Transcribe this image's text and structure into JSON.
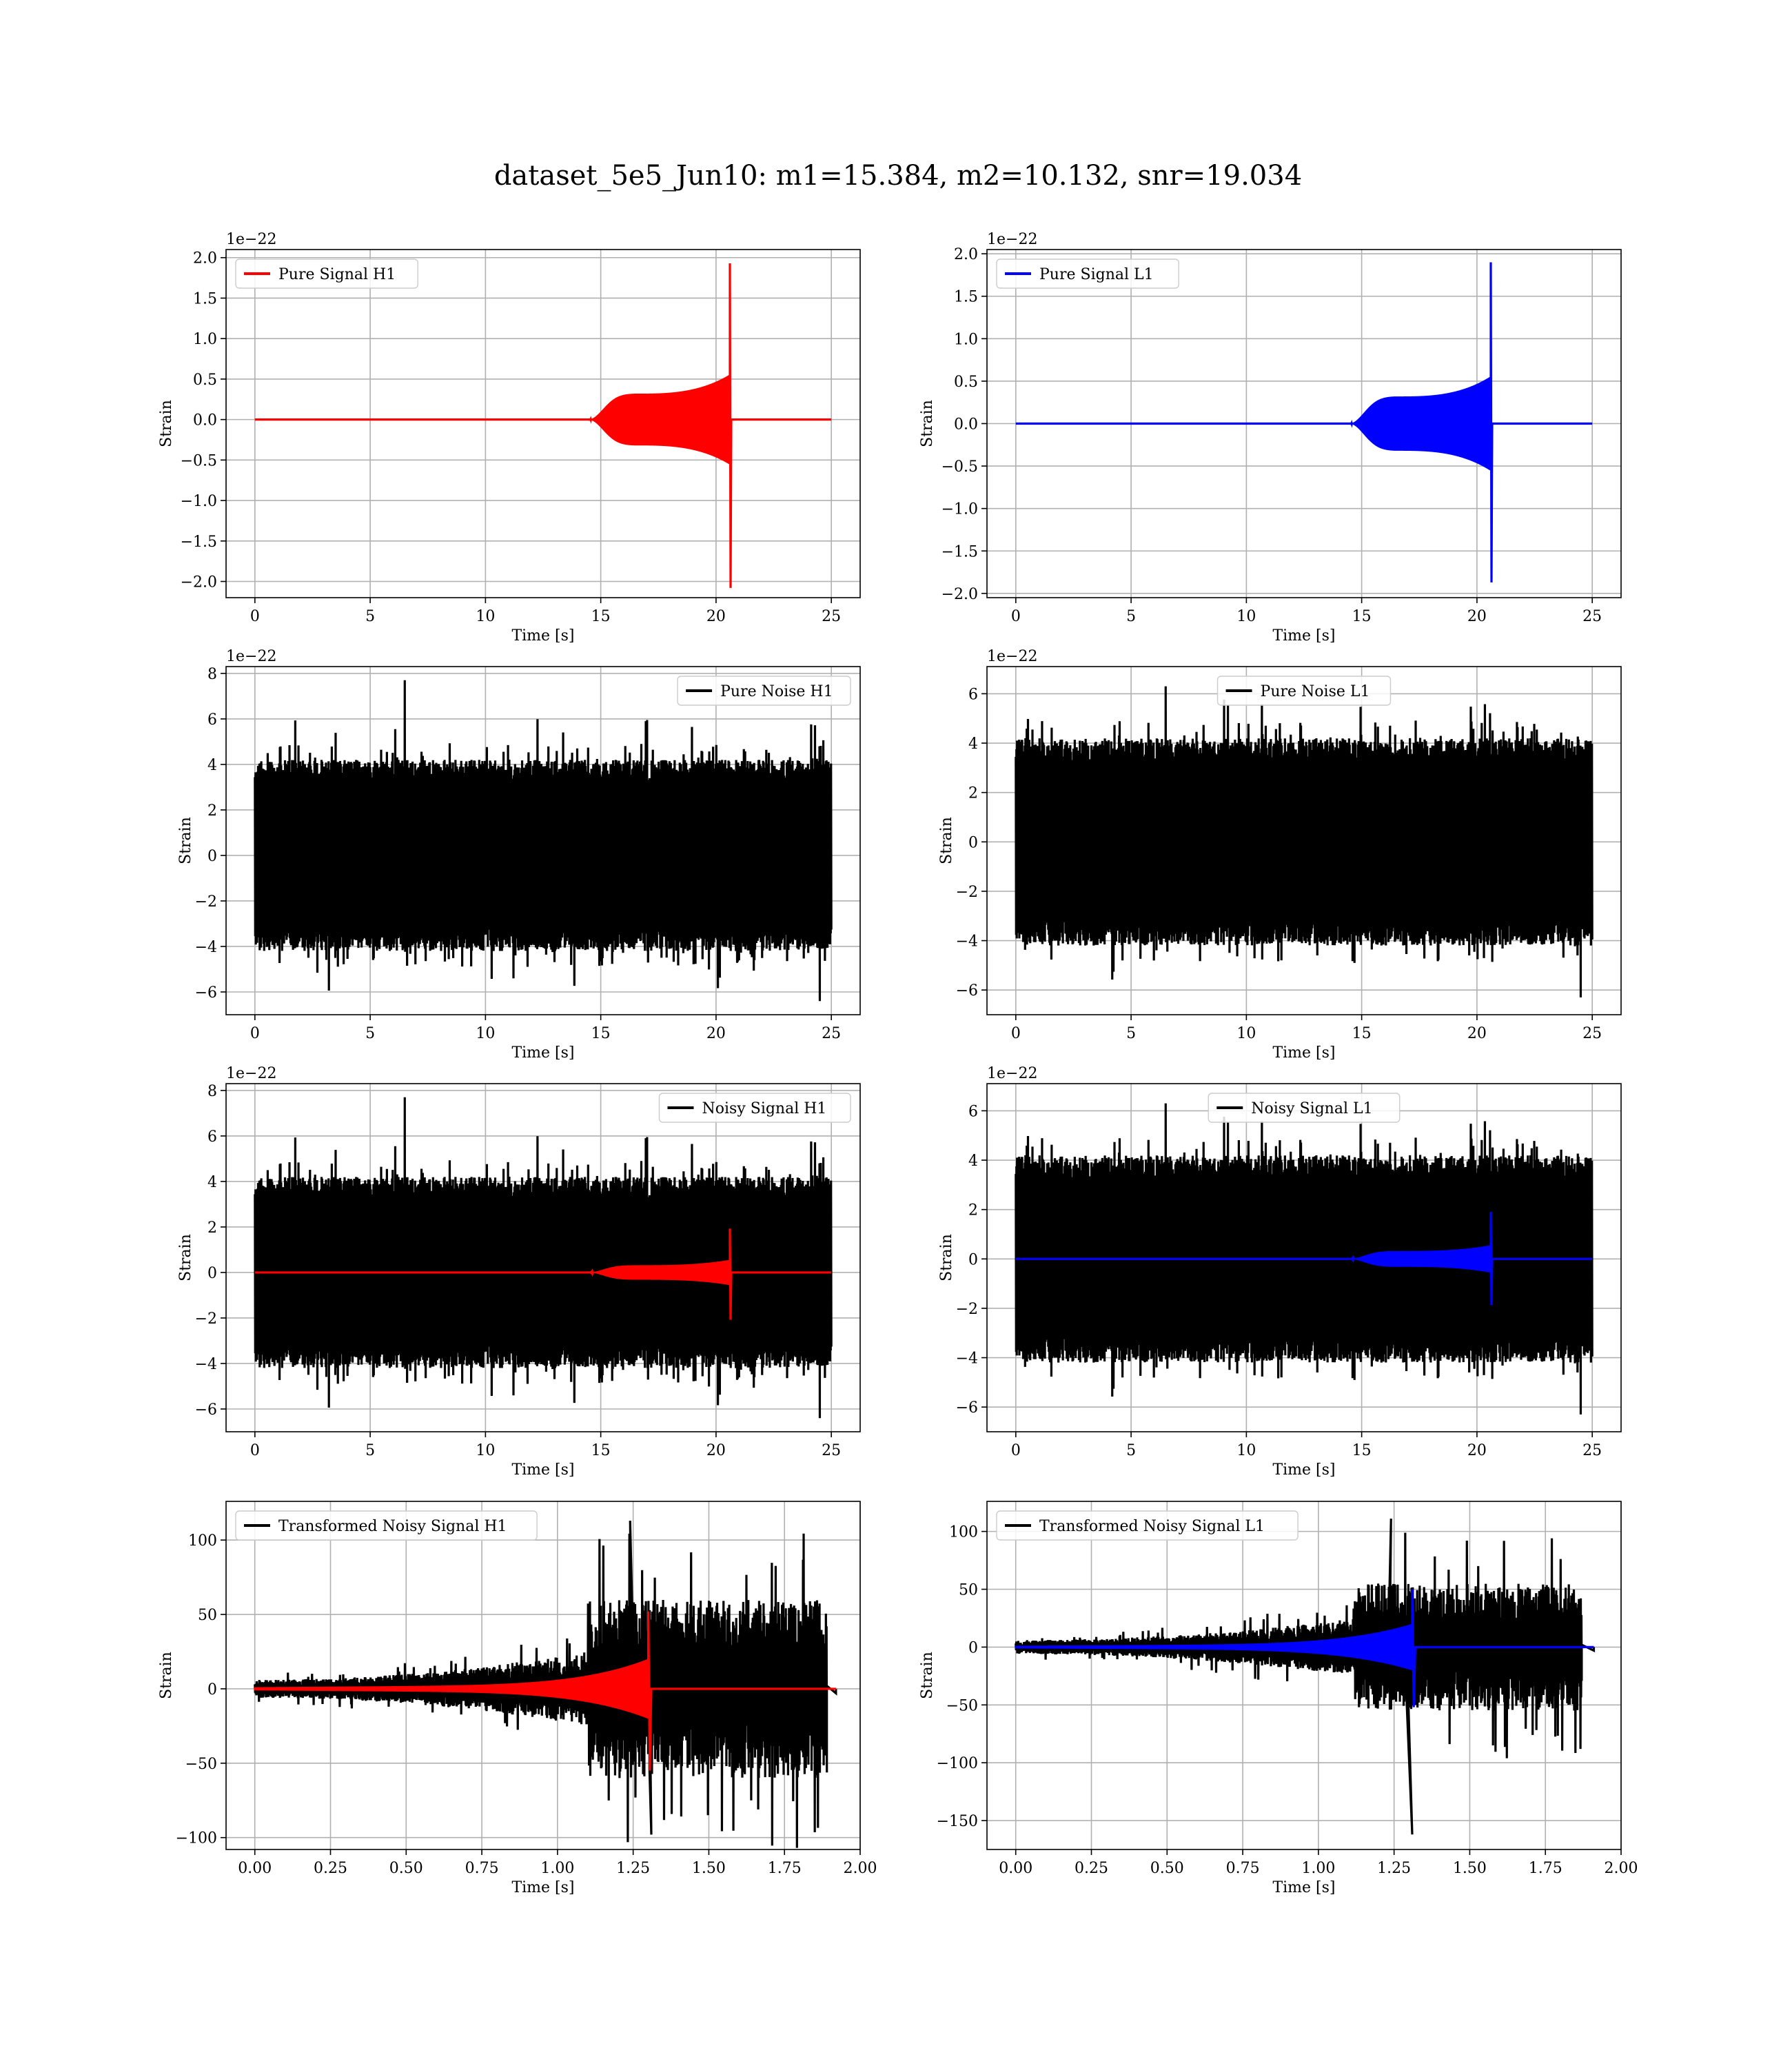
{
  "figure": {
    "title": "dataset_5e5_Jun10: m1=15.384, m2=10.132, snr=19.034"
  },
  "chart_data": [
    {
      "id": "pure-signal-h1",
      "type": "line",
      "legend": "Pure Signal H1",
      "legend_loc": "upper-left",
      "xlabel": "Time [s]",
      "ylabel": "Strain",
      "offset_label": "1e−22",
      "xlim": [
        -1.25,
        26.25
      ],
      "ylim": [
        -2.2,
        2.1
      ],
      "xticks": [
        0,
        5,
        10,
        15,
        20,
        25
      ],
      "yticks": [
        -2.0,
        -1.5,
        -1.0,
        -0.5,
        0.0,
        0.5,
        1.0,
        1.5,
        2.0
      ],
      "ytick_labels": [
        "−2.0",
        "−1.5",
        "−1.0",
        "−0.5",
        "0.0",
        "0.5",
        "1.0",
        "1.5",
        "2.0"
      ],
      "grid": true,
      "series": [
        {
          "kind": "chirp",
          "color": "#ff0000",
          "t0": 14.5,
          "plateau_start": 16.5,
          "t_merge": 20.6,
          "t_end": 25,
          "plateau": 0.32,
          "pre_merge": 0.55,
          "peak_pos": 1.93,
          "peak_neg": -2.08
        }
      ]
    },
    {
      "id": "pure-signal-l1",
      "type": "line",
      "legend": "Pure Signal L1",
      "legend_loc": "upper-left",
      "xlabel": "Time [s]",
      "ylabel": "Strain",
      "offset_label": "1e−22",
      "xlim": [
        -1.25,
        26.25
      ],
      "ylim": [
        -2.05,
        2.05
      ],
      "xticks": [
        0,
        5,
        10,
        15,
        20,
        25
      ],
      "yticks": [
        -2.0,
        -1.5,
        -1.0,
        -0.5,
        0.0,
        0.5,
        1.0,
        1.5,
        2.0
      ],
      "ytick_labels": [
        "−2.0",
        "−1.5",
        "−1.0",
        "−0.5",
        "0.0",
        "0.5",
        "1.0",
        "1.5",
        "2.0"
      ],
      "grid": true,
      "series": [
        {
          "kind": "chirp",
          "color": "#0000ff",
          "t0": 14.5,
          "plateau_start": 16.5,
          "t_merge": 20.6,
          "t_end": 25,
          "plateau": 0.32,
          "pre_merge": 0.55,
          "peak_pos": 1.9,
          "peak_neg": -1.87
        }
      ]
    },
    {
      "id": "pure-noise-h1",
      "type": "line",
      "legend": "Pure Noise H1",
      "legend_loc": "upper-right",
      "xlabel": "Time [s]",
      "ylabel": "Strain",
      "offset_label": "1e−22",
      "xlim": [
        -1.25,
        26.25
      ],
      "ylim": [
        -7.0,
        8.3
      ],
      "xticks": [
        0,
        5,
        10,
        15,
        20,
        25
      ],
      "yticks": [
        -6,
        -4,
        -2,
        0,
        2,
        4,
        6,
        8
      ],
      "ytick_labels": [
        "−6",
        "−4",
        "−2",
        "0",
        "2",
        "4",
        "6",
        "8"
      ],
      "grid": true,
      "series": [
        {
          "kind": "noise",
          "color": "#000000",
          "t0": 0,
          "t1": 25,
          "core": 3.2,
          "max": 7.7,
          "min": -6.4,
          "seed": 11
        }
      ]
    },
    {
      "id": "pure-noise-l1",
      "type": "line",
      "legend": "Pure Noise L1",
      "legend_loc": "upper-center",
      "xlabel": "Time [s]",
      "ylabel": "Strain",
      "offset_label": "1e−22",
      "xlim": [
        -1.25,
        26.25
      ],
      "ylim": [
        -7.0,
        7.1
      ],
      "xticks": [
        0,
        5,
        10,
        15,
        20,
        25
      ],
      "yticks": [
        -6,
        -4,
        -2,
        0,
        2,
        4,
        6
      ],
      "ytick_labels": [
        "−6",
        "−4",
        "−2",
        "0",
        "2",
        "4",
        "6"
      ],
      "grid": true,
      "series": [
        {
          "kind": "noise",
          "color": "#000000",
          "t0": 0,
          "t1": 25,
          "core": 3.2,
          "max": 6.3,
          "min": -6.3,
          "seed": 23
        }
      ]
    },
    {
      "id": "noisy-signal-h1",
      "type": "line",
      "legend": "Noisy Signal H1",
      "legend_loc": "upper-right",
      "xlabel": "Time [s]",
      "ylabel": "Strain",
      "offset_label": "1e−22",
      "xlim": [
        -1.25,
        26.25
      ],
      "ylim": [
        -7.0,
        8.3
      ],
      "xticks": [
        0,
        5,
        10,
        15,
        20,
        25
      ],
      "yticks": [
        -6,
        -4,
        -2,
        0,
        2,
        4,
        6,
        8
      ],
      "ytick_labels": [
        "−6",
        "−4",
        "−2",
        "0",
        "2",
        "4",
        "6",
        "8"
      ],
      "grid": true,
      "series": [
        {
          "kind": "noise",
          "color": "#000000",
          "t0": 0,
          "t1": 25,
          "core": 3.2,
          "max": 7.7,
          "min": -6.4,
          "seed": 11
        },
        {
          "kind": "chirp",
          "color": "#ff0000",
          "t0": 14.5,
          "plateau_start": 16.5,
          "t_merge": 20.6,
          "t_end": 25,
          "plateau": 0.32,
          "pre_merge": 0.55,
          "peak_pos": 1.93,
          "peak_neg": -2.08
        }
      ]
    },
    {
      "id": "noisy-signal-l1",
      "type": "line",
      "legend": "Noisy Signal L1",
      "legend_loc": "upper-center",
      "xlabel": "Time [s]",
      "ylabel": "Strain",
      "offset_label": "1e−22",
      "xlim": [
        -1.25,
        26.25
      ],
      "ylim": [
        -7.0,
        7.1
      ],
      "xticks": [
        0,
        5,
        10,
        15,
        20,
        25
      ],
      "yticks": [
        -6,
        -4,
        -2,
        0,
        2,
        4,
        6
      ],
      "ytick_labels": [
        "−6",
        "−4",
        "−2",
        "0",
        "2",
        "4",
        "6"
      ],
      "grid": true,
      "series": [
        {
          "kind": "noise",
          "color": "#000000",
          "t0": 0,
          "t1": 25,
          "core": 3.2,
          "max": 6.3,
          "min": -6.3,
          "seed": 23
        },
        {
          "kind": "chirp",
          "color": "#0000ff",
          "t0": 14.5,
          "plateau_start": 16.5,
          "t_merge": 20.6,
          "t_end": 25,
          "plateau": 0.32,
          "pre_merge": 0.55,
          "peak_pos": 1.9,
          "peak_neg": -1.87
        }
      ]
    },
    {
      "id": "transformed-noisy-signal-h1",
      "type": "line",
      "legend": "Transformed Noisy Signal H1",
      "legend_loc": "upper-left",
      "xlabel": "Time [s]",
      "ylabel": "Strain",
      "offset_label": "",
      "xlim": [
        -0.095,
        2.0
      ],
      "ylim": [
        -108,
        126
      ],
      "xticks": [
        0.0,
        0.25,
        0.5,
        0.75,
        1.0,
        1.25,
        1.5,
        1.75,
        2.0
      ],
      "xtick_labels": [
        "0.00",
        "0.25",
        "0.50",
        "0.75",
        "1.00",
        "1.25",
        "1.50",
        "1.75",
        "2.00"
      ],
      "yticks": [
        -100,
        -50,
        0,
        50,
        100
      ],
      "ytick_labels": [
        "−100",
        "−50",
        "0",
        "50",
        "100"
      ],
      "grid": true,
      "series": [
        {
          "kind": "tnoise",
          "color": "#000000",
          "t0": 0,
          "t1": 1.89,
          "t_split": 1.1,
          "start_env": 6,
          "pre_env": 25,
          "post_env": 60,
          "max": 113,
          "min": -98,
          "tail_end": 1.92,
          "seed": 37
        },
        {
          "kind": "tchirp",
          "color": "#ff0000",
          "t0": 0,
          "t_merge": 1.3,
          "t_end": 1.92,
          "start_env": 1,
          "pre_env": 18,
          "peak_pos": 52,
          "peak_neg": -55
        }
      ]
    },
    {
      "id": "transformed-noisy-signal-l1",
      "type": "line",
      "legend": "Transformed Noisy Signal L1",
      "legend_loc": "upper-left",
      "xlabel": "Time [s]",
      "ylabel": "Strain",
      "offset_label": "",
      "xlim": [
        -0.095,
        2.0
      ],
      "ylim": [
        -175,
        126
      ],
      "xticks": [
        0.0,
        0.25,
        0.5,
        0.75,
        1.0,
        1.25,
        1.5,
        1.75,
        2.0
      ],
      "xtick_labels": [
        "0.00",
        "0.25",
        "0.50",
        "0.75",
        "1.00",
        "1.25",
        "1.50",
        "1.75",
        "2.00"
      ],
      "yticks": [
        -150,
        -100,
        -50,
        0,
        50,
        100
      ],
      "ytick_labels": [
        "−150",
        "−100",
        "−50",
        "0",
        "50",
        "100"
      ],
      "grid": true,
      "series": [
        {
          "kind": "tnoise",
          "color": "#000000",
          "t0": 0,
          "t1": 1.87,
          "t_split": 1.12,
          "start_env": 6,
          "pre_env": 25,
          "post_env": 55,
          "max": 111,
          "min": -162,
          "tail_end": 1.91,
          "seed": 53
        },
        {
          "kind": "tchirp",
          "color": "#0000ff",
          "t0": 0,
          "t_merge": 1.31,
          "t_end": 1.91,
          "start_env": 1,
          "pre_env": 18,
          "peak_pos": 50,
          "peak_neg": -52
        }
      ]
    }
  ]
}
